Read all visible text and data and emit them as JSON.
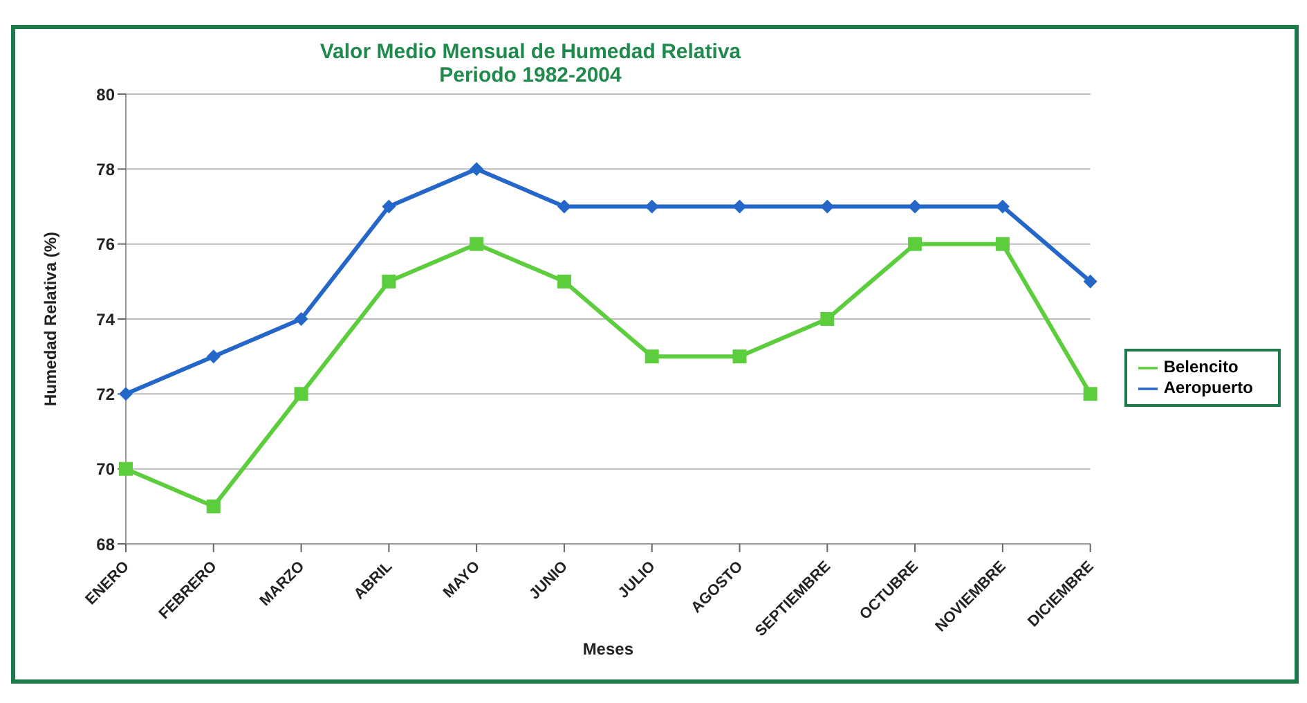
{
  "chart_data": {
    "type": "line",
    "title": "Valor Medio Mensual de Humedad Relativa",
    "subtitle": "Periodo 1982-2004",
    "xlabel": "Meses",
    "ylabel": "Humedad Relativa (%)",
    "categories": [
      "ENERO",
      "FEBRERO",
      "MARZO",
      "ABRIL",
      "MAYO",
      "JUNIO",
      "JULIO",
      "AGOSTO",
      "SEPTIEMBRE",
      "OCTUBRE",
      "NOVIEMBRE",
      "DICIEMBRE"
    ],
    "series": [
      {
        "name": "Belencito",
        "color": "#5ccd3c",
        "marker": "square",
        "values": [
          70,
          69,
          72,
          75,
          76,
          75,
          73,
          73,
          74,
          76,
          76,
          72
        ]
      },
      {
        "name": "Aeropuerto",
        "color": "#2467c9",
        "marker": "diamond",
        "values": [
          72,
          73,
          74,
          77,
          78,
          77,
          77,
          77,
          77,
          77,
          77,
          75
        ]
      }
    ],
    "ylim": [
      68,
      80
    ],
    "yticks": [
      68,
      70,
      72,
      74,
      76,
      78,
      80
    ],
    "grid": "y",
    "legend": "right",
    "line_style": "solid"
  }
}
